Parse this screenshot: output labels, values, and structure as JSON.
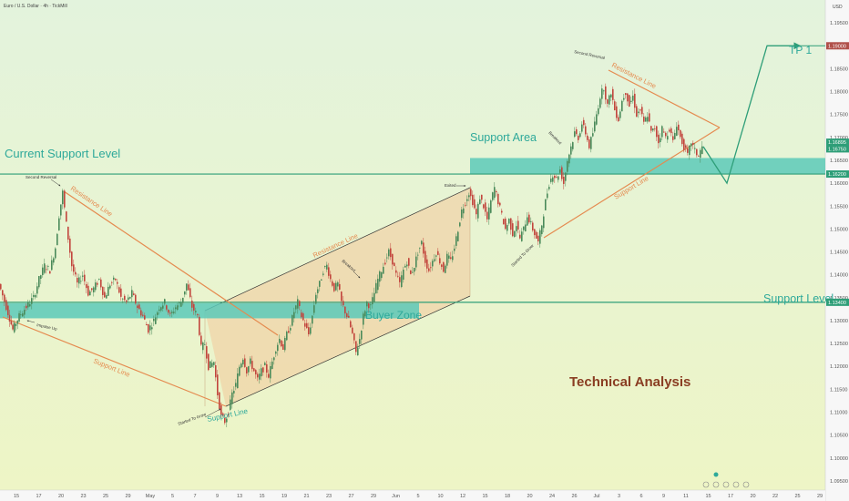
{
  "header": {
    "symbol": "Euro / U.S. Dollar · 4h · TickMill",
    "currency": "USD",
    "bottom_icons": [
      "settings-icon",
      "calendar-icon",
      "replay-icon",
      "alert-icon"
    ]
  },
  "colors": {
    "background_top": "#e3f3dd",
    "background_bottom": "#eef5c5",
    "up_candle": "#4a8a5a",
    "down_candle": "#c2453d",
    "zone": "#5cc9b9",
    "level_line": "#2e9e78",
    "orange": "#e58a4f",
    "teal_text": "#2ea99a",
    "analysis_text": "#8a3d22",
    "channel_fill": "#f2c89a"
  },
  "annotations": {
    "current_support_level": "Current Support Level",
    "support_area": "Support Area",
    "support_level": "Support Level",
    "buyer_zone": "Buyer Zone",
    "tp1": "TP 1",
    "technical_analysis": "Technical Analysis",
    "resistance_line": "Resistance Line",
    "support_line": "Support Line",
    "second_reversal": "Second Reversal",
    "impulse_up": "Impulse Up",
    "started_to_grow": "Started To Grow",
    "breakout": "Breakout",
    "exited": "Exited"
  },
  "chart_data": {
    "type": "candlestick",
    "title": "Euro / U.S. Dollar · 4h · TickMill",
    "y_ticks": [
      "1.19500",
      "1.19000",
      "1.18500",
      "1.18000",
      "1.17500",
      "1.17000",
      "1.16500",
      "1.16000",
      "1.15500",
      "1.15000",
      "1.14500",
      "1.14000",
      "1.13500",
      "1.13000",
      "1.12500",
      "1.12000",
      "1.11500",
      "1.11000",
      "1.10500",
      "1.10000",
      "1.09500"
    ],
    "y_range": [
      1.093,
      1.2
    ],
    "x_ticks": [
      "15",
      "17",
      "20",
      "23",
      "25",
      "29",
      "May",
      "5",
      "7",
      "9",
      "13",
      "15",
      "19",
      "21",
      "23",
      "27",
      "29",
      "Jun",
      "5",
      "10",
      "12",
      "15",
      "18",
      "20",
      "24",
      "26",
      "Jul",
      "3",
      "6",
      "9",
      "11",
      "15",
      "17",
      "20",
      "22",
      "25",
      "29"
    ],
    "price_labels": {
      "tp": "1.19000",
      "current_high": "1.16895",
      "current_low": "1.16750",
      "current_support": "1.16200",
      "support_level": "1.13400"
    },
    "levels": {
      "current_support": 1.162,
      "support_level": 1.134,
      "tp1": 1.19,
      "support_area": [
        1.162,
        1.1655
      ],
      "buyer_zone": [
        1.1305,
        1.1338
      ]
    },
    "price_path": [
      [
        0,
        1.138
      ],
      [
        8,
        1.133
      ],
      [
        15,
        1.128
      ],
      [
        22,
        1.131
      ],
      [
        30,
        1.133
      ],
      [
        38,
        1.135
      ],
      [
        44,
        1.139
      ],
      [
        50,
        1.142
      ],
      [
        56,
        1.141
      ],
      [
        62,
        1.146
      ],
      [
        66,
        1.153
      ],
      [
        70,
        1.158
      ],
      [
        74,
        1.151
      ],
      [
        80,
        1.142
      ],
      [
        86,
        1.138
      ],
      [
        92,
        1.14
      ],
      [
        98,
        1.136
      ],
      [
        104,
        1.137
      ],
      [
        110,
        1.139
      ],
      [
        116,
        1.135
      ],
      [
        122,
        1.138
      ],
      [
        128,
        1.139
      ],
      [
        134,
        1.135
      ],
      [
        140,
        1.134
      ],
      [
        146,
        1.136
      ],
      [
        152,
        1.133
      ],
      [
        158,
        1.131
      ],
      [
        164,
        1.128
      ],
      [
        170,
        1.13
      ],
      [
        176,
        1.133
      ],
      [
        182,
        1.134
      ],
      [
        188,
        1.131
      ],
      [
        194,
        1.133
      ],
      [
        200,
        1.134
      ],
      [
        206,
        1.138
      ],
      [
        212,
        1.133
      ],
      [
        218,
        1.131
      ],
      [
        222,
        1.124
      ],
      [
        226,
        1.125
      ],
      [
        230,
        1.12
      ],
      [
        236,
        1.121
      ],
      [
        240,
        1.114
      ],
      [
        244,
        1.109
      ],
      [
        248,
        1.108
      ],
      [
        252,
        1.11
      ],
      [
        256,
        1.114
      ],
      [
        260,
        1.116
      ],
      [
        264,
        1.12
      ],
      [
        268,
        1.122
      ],
      [
        272,
        1.119
      ],
      [
        276,
        1.121
      ],
      [
        280,
        1.119
      ],
      [
        284,
        1.117
      ],
      [
        288,
        1.119
      ],
      [
        292,
        1.12
      ],
      [
        296,
        1.118
      ],
      [
        300,
        1.121
      ],
      [
        304,
        1.124
      ],
      [
        308,
        1.126
      ],
      [
        312,
        1.124
      ],
      [
        316,
        1.127
      ],
      [
        320,
        1.129
      ],
      [
        324,
        1.132
      ],
      [
        328,
        1.134
      ],
      [
        332,
        1.131
      ],
      [
        336,
        1.129
      ],
      [
        340,
        1.127
      ],
      [
        344,
        1.131
      ],
      [
        348,
        1.136
      ],
      [
        352,
        1.138
      ],
      [
        356,
        1.141
      ],
      [
        360,
        1.142
      ],
      [
        364,
        1.139
      ],
      [
        368,
        1.137
      ],
      [
        372,
        1.138
      ],
      [
        376,
        1.134
      ],
      [
        380,
        1.132
      ],
      [
        384,
        1.13
      ],
      [
        388,
        1.127
      ],
      [
        392,
        1.123
      ],
      [
        396,
        1.126
      ],
      [
        400,
        1.131
      ],
      [
        404,
        1.134
      ],
      [
        408,
        1.133
      ],
      [
        412,
        1.136
      ],
      [
        416,
        1.139
      ],
      [
        420,
        1.141
      ],
      [
        424,
        1.143
      ],
      [
        428,
        1.145
      ],
      [
        432,
        1.143
      ],
      [
        436,
        1.14
      ],
      [
        440,
        1.138
      ],
      [
        444,
        1.141
      ],
      [
        448,
        1.143
      ],
      [
        452,
        1.14
      ],
      [
        456,
        1.142
      ],
      [
        460,
        1.145
      ],
      [
        464,
        1.147
      ],
      [
        468,
        1.143
      ],
      [
        472,
        1.141
      ],
      [
        476,
        1.143
      ],
      [
        480,
        1.145
      ],
      [
        484,
        1.143
      ],
      [
        488,
        1.141
      ],
      [
        492,
        1.144
      ],
      [
        496,
        1.143
      ],
      [
        500,
        1.146
      ],
      [
        504,
        1.15
      ],
      [
        508,
        1.154
      ],
      [
        512,
        1.156
      ],
      [
        516,
        1.158
      ],
      [
        520,
        1.156
      ],
      [
        524,
        1.153
      ],
      [
        528,
        1.157
      ],
      [
        532,
        1.155
      ],
      [
        536,
        1.152
      ],
      [
        540,
        1.156
      ],
      [
        544,
        1.159
      ],
      [
        548,
        1.156
      ],
      [
        552,
        1.153
      ],
      [
        556,
        1.15
      ],
      [
        560,
        1.152
      ],
      [
        564,
        1.149
      ],
      [
        568,
        1.151
      ],
      [
        572,
        1.148
      ],
      [
        576,
        1.15
      ],
      [
        580,
        1.153
      ],
      [
        584,
        1.151
      ],
      [
        588,
        1.149
      ],
      [
        592,
        1.147
      ],
      [
        596,
        1.151
      ],
      [
        600,
        1.156
      ],
      [
        604,
        1.16
      ],
      [
        608,
        1.162
      ],
      [
        612,
        1.161
      ],
      [
        616,
        1.163
      ],
      [
        620,
        1.16
      ],
      [
        624,
        1.165
      ],
      [
        628,
        1.168
      ],
      [
        632,
        1.171
      ],
      [
        636,
        1.17
      ],
      [
        640,
        1.173
      ],
      [
        644,
        1.171
      ],
      [
        648,
        1.168
      ],
      [
        652,
        1.171
      ],
      [
        656,
        1.175
      ],
      [
        660,
        1.179
      ],
      [
        664,
        1.181
      ],
      [
        668,
        1.177
      ],
      [
        672,
        1.18
      ],
      [
        676,
        1.176
      ],
      [
        680,
        1.174
      ],
      [
        684,
        1.178
      ],
      [
        688,
        1.18
      ],
      [
        692,
        1.177
      ],
      [
        696,
        1.179
      ],
      [
        700,
        1.175
      ],
      [
        704,
        1.176
      ],
      [
        708,
        1.173
      ],
      [
        712,
        1.175
      ],
      [
        716,
        1.171
      ],
      [
        720,
        1.172
      ],
      [
        724,
        1.169
      ],
      [
        728,
        1.172
      ],
      [
        732,
        1.17
      ],
      [
        736,
        1.172
      ],
      [
        740,
        1.169
      ],
      [
        744,
        1.173
      ],
      [
        748,
        1.17
      ],
      [
        752,
        1.168
      ],
      [
        756,
        1.166
      ],
      [
        760,
        1.169
      ],
      [
        764,
        1.167
      ],
      [
        768,
        1.166
      ],
      [
        772,
        1.168
      ]
    ],
    "projection": [
      [
        772,
        1.168
      ],
      [
        798,
        1.16
      ],
      [
        842,
        1.19
      ],
      [
        878,
        1.19
      ]
    ]
  }
}
